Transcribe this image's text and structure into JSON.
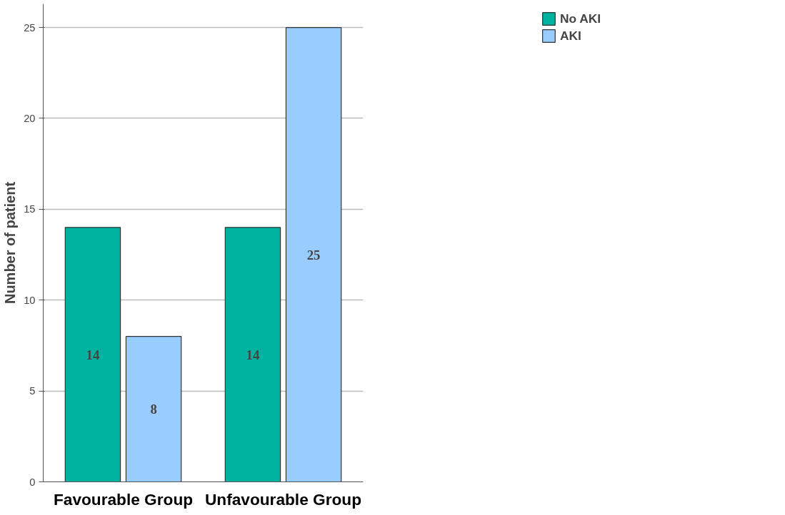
{
  "chart_data": {
    "type": "bar",
    "ylabel": "Number of patient",
    "categories": [
      "Favourable Group",
      "Unfavourable Group"
    ],
    "series": [
      {
        "name": "No AKI",
        "color": "#00b3a0",
        "values": [
          14,
          14
        ]
      },
      {
        "name": "AKI",
        "color": "#99ccff",
        "values": [
          8,
          25
        ]
      }
    ],
    "ylim": [
      0,
      26.3
    ],
    "yticks": [
      0,
      5,
      10,
      15,
      20,
      25
    ],
    "grid": "y",
    "legend": "top right",
    "data_labels": true
  }
}
